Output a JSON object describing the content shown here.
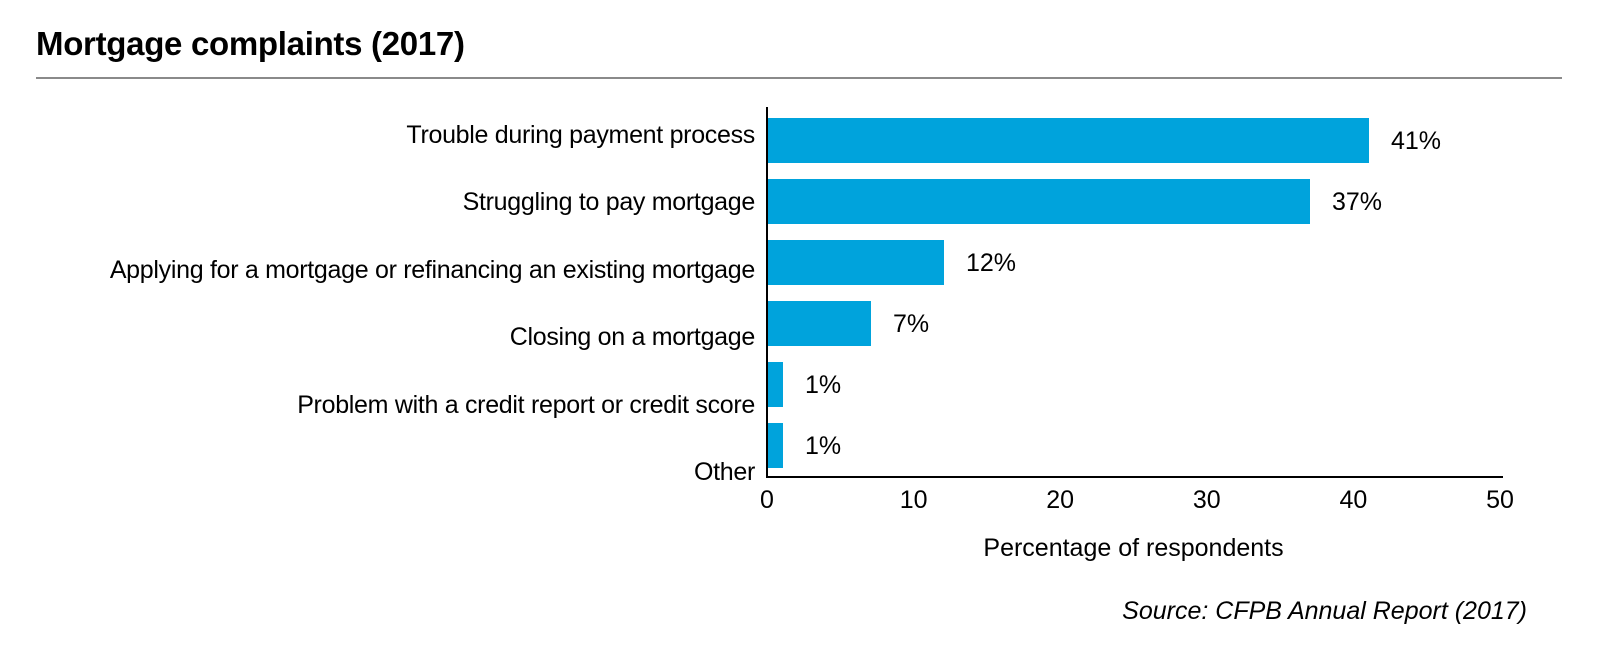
{
  "page": {
    "title": "Mortgage complaints (2017)",
    "source_note": "Source: CFPB Annual Report (2017)"
  },
  "chart_data": {
    "type": "bar",
    "orientation": "horizontal",
    "title": "Mortgage complaints (2017)",
    "categories": [
      "Trouble during payment process",
      "Struggling to pay mortgage",
      "Applying for a mortgage or refinancing an existing mortgage",
      "Closing on a mortgage",
      "Problem with a credit report or credit score",
      "Other"
    ],
    "values": [
      41,
      37,
      12,
      7,
      1,
      1
    ],
    "value_labels": [
      "41%",
      "37%",
      "12%",
      "7%",
      "1%",
      "1%"
    ],
    "xlabel": "Percentage of respondents",
    "ylabel": "",
    "xlim": [
      0,
      50
    ],
    "xticks": [
      0,
      10,
      20,
      30,
      40,
      50
    ],
    "grid": false,
    "legend": false,
    "bar_color": "#00A3DC",
    "source": "Source: CFPB Annual Report (2017)"
  },
  "colors": {
    "background": "#FFFFFF",
    "bar": "#00A3DC",
    "text": "#000000",
    "axis": "#000000",
    "divider": "#8A8A8A"
  }
}
